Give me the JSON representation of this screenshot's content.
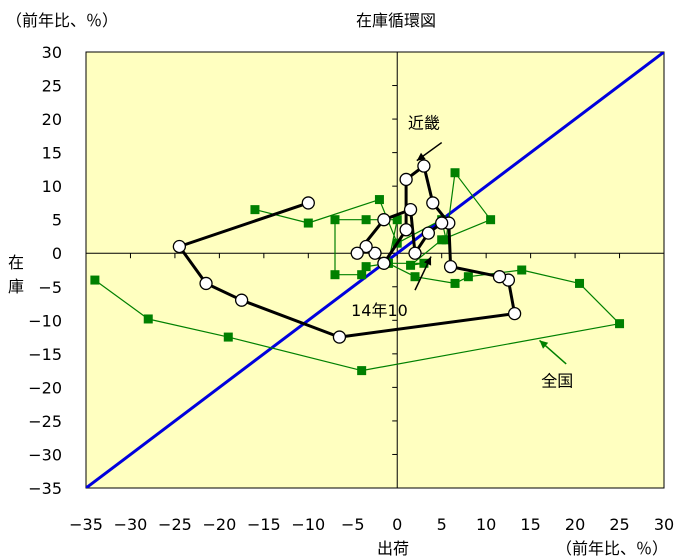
{
  "chart_data": {
    "type": "scatter",
    "title": "在庫循環図",
    "xlabel": "出荷",
    "ylabel": "在庫",
    "xunit": "（前年比、％）",
    "yunit": "（前年比、％）",
    "xlim": [
      -35,
      30
    ],
    "ylim": [
      -35,
      30
    ],
    "xticks": [
      -35,
      -30,
      -25,
      -20,
      -15,
      -10,
      -5,
      0,
      5,
      10,
      15,
      20,
      25,
      30
    ],
    "yticks": [
      -35,
      -30,
      -25,
      -20,
      -15,
      -10,
      -5,
      0,
      5,
      10,
      15,
      20,
      25,
      30
    ],
    "xtick_labels": [
      "−35",
      "−30",
      "−25",
      "−20",
      "−15",
      "−10",
      "−5",
      "0",
      "5",
      "10",
      "15",
      "20",
      "25",
      "30"
    ],
    "ytick_labels": [
      "−35",
      "−30",
      "−25",
      "−20",
      "−15",
      "−10",
      "−5",
      "0",
      "5",
      "10",
      "15",
      "20",
      "25",
      "30"
    ],
    "grid": false,
    "background_color": "#ffffc0",
    "reference_line": {
      "from": [
        -35,
        -35
      ],
      "to": [
        30,
        30
      ],
      "color": "#0000dd"
    },
    "series": [
      {
        "name": "全国",
        "color": "#008000",
        "marker": "square",
        "points": [
          [
            -16,
            6.5
          ],
          [
            -10,
            4.5
          ],
          [
            -2,
            8
          ],
          [
            0,
            1.5
          ],
          [
            5,
            5
          ],
          [
            5.5,
            2
          ],
          [
            6.5,
            12
          ],
          [
            10.5,
            5
          ],
          [
            5,
            2
          ],
          [
            1.5,
            -1.8
          ],
          [
            3,
            -1.5
          ],
          [
            -1,
            -1.5
          ],
          [
            -3.5,
            -2
          ],
          [
            -4,
            -3.2
          ],
          [
            -7,
            -3.2
          ],
          [
            -7,
            5
          ],
          [
            -3.5,
            5
          ],
          [
            0,
            5
          ],
          [
            -1,
            -1.5
          ],
          [
            2,
            -3.5
          ],
          [
            6.5,
            -4.5
          ],
          [
            8,
            -3.5
          ],
          [
            14,
            -2.5
          ],
          [
            20.5,
            -4.5
          ],
          [
            25,
            -10.5
          ],
          [
            -4,
            -17.5
          ],
          [
            -19,
            -12.5
          ],
          [
            -28,
            -9.8
          ],
          [
            -34,
            -4
          ]
        ]
      },
      {
        "name": "近畿",
        "color": "#000000",
        "marker": "circle",
        "points": [
          [
            -10,
            7.5
          ],
          [
            -24.5,
            1
          ],
          [
            -21.5,
            -4.5
          ],
          [
            -17.5,
            -7
          ],
          [
            -6.5,
            -12.5
          ],
          [
            13.2,
            -9
          ],
          [
            12.5,
            -4
          ],
          [
            11.5,
            -3.5
          ],
          [
            6,
            -2
          ],
          [
            5.8,
            4.5
          ],
          [
            4,
            7.5
          ],
          [
            3,
            13
          ],
          [
            1,
            11
          ],
          [
            1,
            3.5
          ],
          [
            -1.5,
            -1.5
          ],
          [
            -2.5,
            0
          ],
          [
            -3.5,
            1
          ],
          [
            -4.5,
            0
          ],
          [
            -1.5,
            5
          ],
          [
            1.5,
            6.5
          ],
          [
            2,
            0
          ],
          [
            3.5,
            3
          ],
          [
            5,
            4.5
          ]
        ]
      }
    ],
    "annotations": [
      {
        "text": "近畿",
        "color": "#000000",
        "x": 3,
        "y": 19.5
      },
      {
        "text": "全国",
        "color": "#008000",
        "x": 18,
        "y": -19
      },
      {
        "text": "14年10",
        "color": "#000000",
        "x": -2,
        "y": -8.5
      }
    ]
  }
}
